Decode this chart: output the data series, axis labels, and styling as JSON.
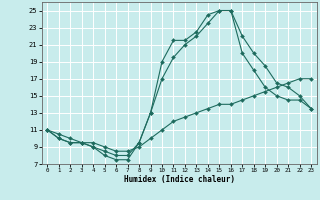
{
  "title": "",
  "xlabel": "Humidex (Indice chaleur)",
  "bg_color": "#c8ecec",
  "grid_color": "#ffffff",
  "line_color": "#1e6b5e",
  "xlim": [
    -0.5,
    23.5
  ],
  "ylim": [
    7,
    26
  ],
  "xticks": [
    0,
    1,
    2,
    3,
    4,
    5,
    6,
    7,
    8,
    9,
    10,
    11,
    12,
    13,
    14,
    15,
    16,
    17,
    18,
    19,
    20,
    21,
    22,
    23
  ],
  "yticks": [
    7,
    9,
    11,
    13,
    15,
    17,
    19,
    21,
    23,
    25
  ],
  "line1_x": [
    0,
    1,
    2,
    3,
    4,
    5,
    6,
    7,
    8,
    9,
    10,
    11,
    12,
    13,
    14,
    15,
    16,
    17,
    18,
    19,
    20,
    21,
    22,
    23
  ],
  "line1_y": [
    11,
    10,
    9.5,
    9.5,
    9,
    8,
    7.5,
    7.5,
    9.5,
    13,
    19,
    21.5,
    21.5,
    22.5,
    24.5,
    25,
    25,
    20,
    18,
    16,
    15,
    14.5,
    14.5,
    13.5
  ],
  "line2_x": [
    0,
    1,
    2,
    3,
    4,
    5,
    6,
    7,
    8,
    9,
    10,
    11,
    12,
    13,
    14,
    15,
    16,
    17,
    18,
    19,
    20,
    21,
    22,
    23
  ],
  "line2_y": [
    11,
    10,
    9.5,
    9.5,
    9,
    8.5,
    8,
    8,
    9.5,
    13,
    17,
    19.5,
    21,
    22,
    23.5,
    25,
    25,
    22,
    20,
    18.5,
    16.5,
    16,
    15,
    13.5
  ],
  "line3_x": [
    0,
    1,
    2,
    3,
    4,
    5,
    6,
    7,
    8,
    9,
    10,
    11,
    12,
    13,
    14,
    15,
    16,
    17,
    18,
    19,
    20,
    21,
    22,
    23
  ],
  "line3_y": [
    11,
    10.5,
    10,
    9.5,
    9.5,
    9,
    8.5,
    8.5,
    9,
    10,
    11,
    12,
    12.5,
    13,
    13.5,
    14,
    14,
    14.5,
    15,
    15.5,
    16,
    16.5,
    17,
    17
  ]
}
